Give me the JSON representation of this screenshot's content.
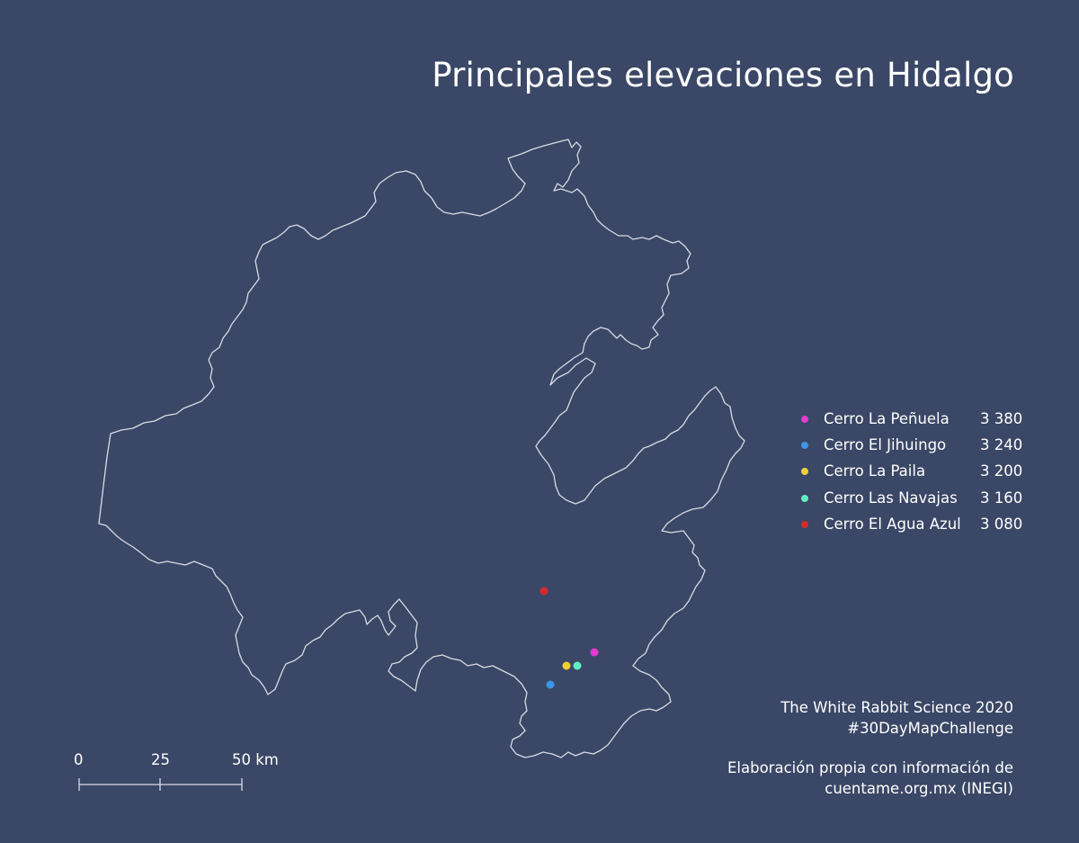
{
  "title": "Principales elevaciones en Hidalgo",
  "colors": {
    "background": "#3a4766",
    "outline": "#d9dbe4"
  },
  "peaks": [
    {
      "name": "Cerro La Peñuela",
      "value": "3 380",
      "color": "#e63ad1"
    },
    {
      "name": "Cerro El Jihuingo",
      "value": "3 240",
      "color": "#3b96e6"
    },
    {
      "name": "Cerro La Paila",
      "value": "3 200",
      "color": "#f0cf35"
    },
    {
      "name": "Cerro Las Navajas",
      "value": "3 160",
      "color": "#5ff0c2"
    },
    {
      "name": "Cerro El Agua Azul",
      "value": "3 080",
      "color": "#d42a2a"
    }
  ],
  "credits": {
    "line1": "The White Rabbit Science 2020",
    "line2": "#30DayMapChallenge",
    "line3": "Elaboración propia con información de",
    "line4": "cuentame.org.mx (INEGI)"
  },
  "scale": {
    "tick0": "0",
    "tick1": "25",
    "tick2": "50 km"
  }
}
